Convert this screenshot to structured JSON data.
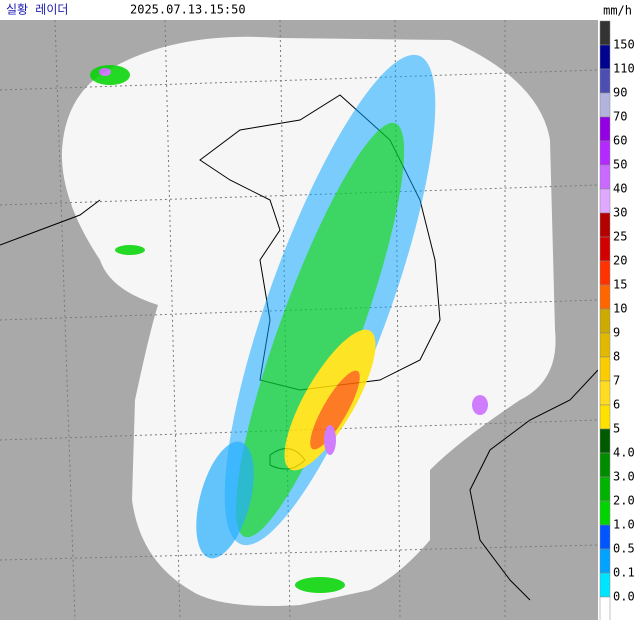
{
  "header": {
    "title": "실황 레이더",
    "time": "2025.07.13.15:50"
  },
  "legend": {
    "unit": "mm/h",
    "labels": [
      "150",
      "110",
      "90",
      "70",
      "60",
      "50",
      "40",
      "30",
      "25",
      "20",
      "15",
      "10",
      "9",
      "8",
      "7",
      "6",
      "5",
      "4.0",
      "3.0",
      "2.0",
      "1.0",
      "0.5",
      "0.1",
      "0.0"
    ],
    "colors": [
      "#333333",
      "#000390",
      "#4c4eb1",
      "#b3b4de",
      "#9300e4",
      "#b329ff",
      "#c969ff",
      "#e0a9ff",
      "#b40000",
      "#d20000",
      "#ff3300",
      "#ff6600",
      "#ccaa00",
      "#e0b900",
      "#f9cd00",
      "#ffdc1f",
      "#ffe100",
      "#005a00",
      "#008c00",
      "#00b300",
      "#00d500",
      "#0055ff",
      "#00a3ff",
      "#00e5ff",
      "#ffffff"
    ]
  }
}
